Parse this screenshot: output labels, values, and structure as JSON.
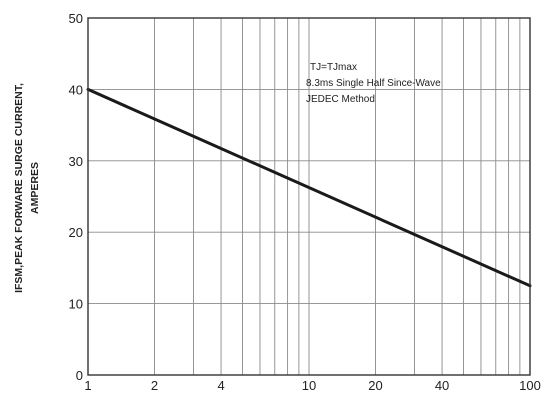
{
  "chart_data": {
    "type": "line",
    "title": "",
    "xlabel": "",
    "ylabel_lines": [
      "IFSM,PEAK FORWARE SURGE CURRENT,",
      "AMPERES"
    ],
    "x_scale": "log",
    "xlim": [
      1,
      100
    ],
    "ylim": [
      0,
      50
    ],
    "x_ticks": [
      1,
      2,
      4,
      10,
      20,
      40,
      100
    ],
    "x_tick_labels": [
      "1",
      "2",
      "4",
      "10",
      "20",
      "40",
      "100"
    ],
    "y_ticks": [
      0,
      10,
      20,
      30,
      40,
      50
    ],
    "y_tick_labels": [
      "0",
      "10",
      "20",
      "30",
      "40",
      "50"
    ],
    "grid": true,
    "annotation_lines": [
      "TJ=TJmax",
      "8.3ms Single Half Since-Wave",
      "JEDEC Method"
    ],
    "series": [
      {
        "x": [
          1,
          100
        ],
        "y": [
          40,
          12.5
        ],
        "color": "#1a1a1a"
      }
    ]
  }
}
